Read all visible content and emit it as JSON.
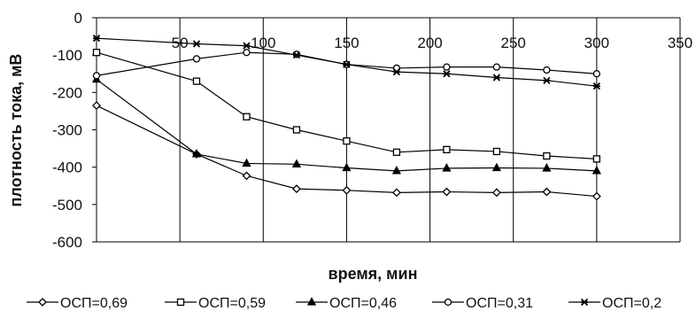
{
  "chart_data": {
    "type": "line",
    "xlabel": "время, мин",
    "ylabel": "плотность тока, мВ",
    "xlim": [
      0,
      350
    ],
    "ylim": [
      -600,
      0
    ],
    "xticks": [
      "50",
      "100",
      "150",
      "200",
      "250",
      "300",
      "350"
    ],
    "yticks": [
      "0",
      "-100",
      "-200",
      "-300",
      "-400",
      "-500",
      "-600"
    ],
    "grid": "vertical",
    "legend_position": "bottom",
    "series": [
      {
        "name": "ОСП=0,69",
        "marker": "diamond",
        "x": [
          0,
          60,
          90,
          120,
          150,
          180,
          210,
          240,
          270,
          300
        ],
        "y": [
          -235,
          -365,
          -423,
          -458,
          -462,
          -468,
          -466,
          -468,
          -466,
          -478
        ]
      },
      {
        "name": "ОСП=0,59",
        "marker": "square",
        "x": [
          0,
          60,
          90,
          120,
          150,
          180,
          210,
          240,
          270,
          300
        ],
        "y": [
          -93,
          -170,
          -265,
          -300,
          -330,
          -360,
          -353,
          -358,
          -370,
          -378
        ]
      },
      {
        "name": "ОСП=0,46",
        "marker": "triangle",
        "x": [
          0,
          60,
          90,
          120,
          150,
          180,
          210,
          240,
          270,
          300
        ],
        "y": [
          -165,
          -365,
          -390,
          -392,
          -402,
          -410,
          -403,
          -402,
          -403,
          -410
        ]
      },
      {
        "name": "ОСП=0,31",
        "marker": "circle",
        "x": [
          0,
          60,
          90,
          120,
          150,
          180,
          210,
          240,
          270,
          300
        ],
        "y": [
          -155,
          -110,
          -93,
          -98,
          -125,
          -135,
          -132,
          -132,
          -140,
          -150
        ]
      },
      {
        "name": "ОСП=0,2",
        "marker": "star",
        "x": [
          0,
          60,
          90,
          120,
          150,
          180,
          210,
          240,
          270,
          300
        ],
        "y": [
          -55,
          -70,
          -75,
          -100,
          -125,
          -145,
          -150,
          -160,
          -168,
          -183
        ]
      }
    ]
  }
}
